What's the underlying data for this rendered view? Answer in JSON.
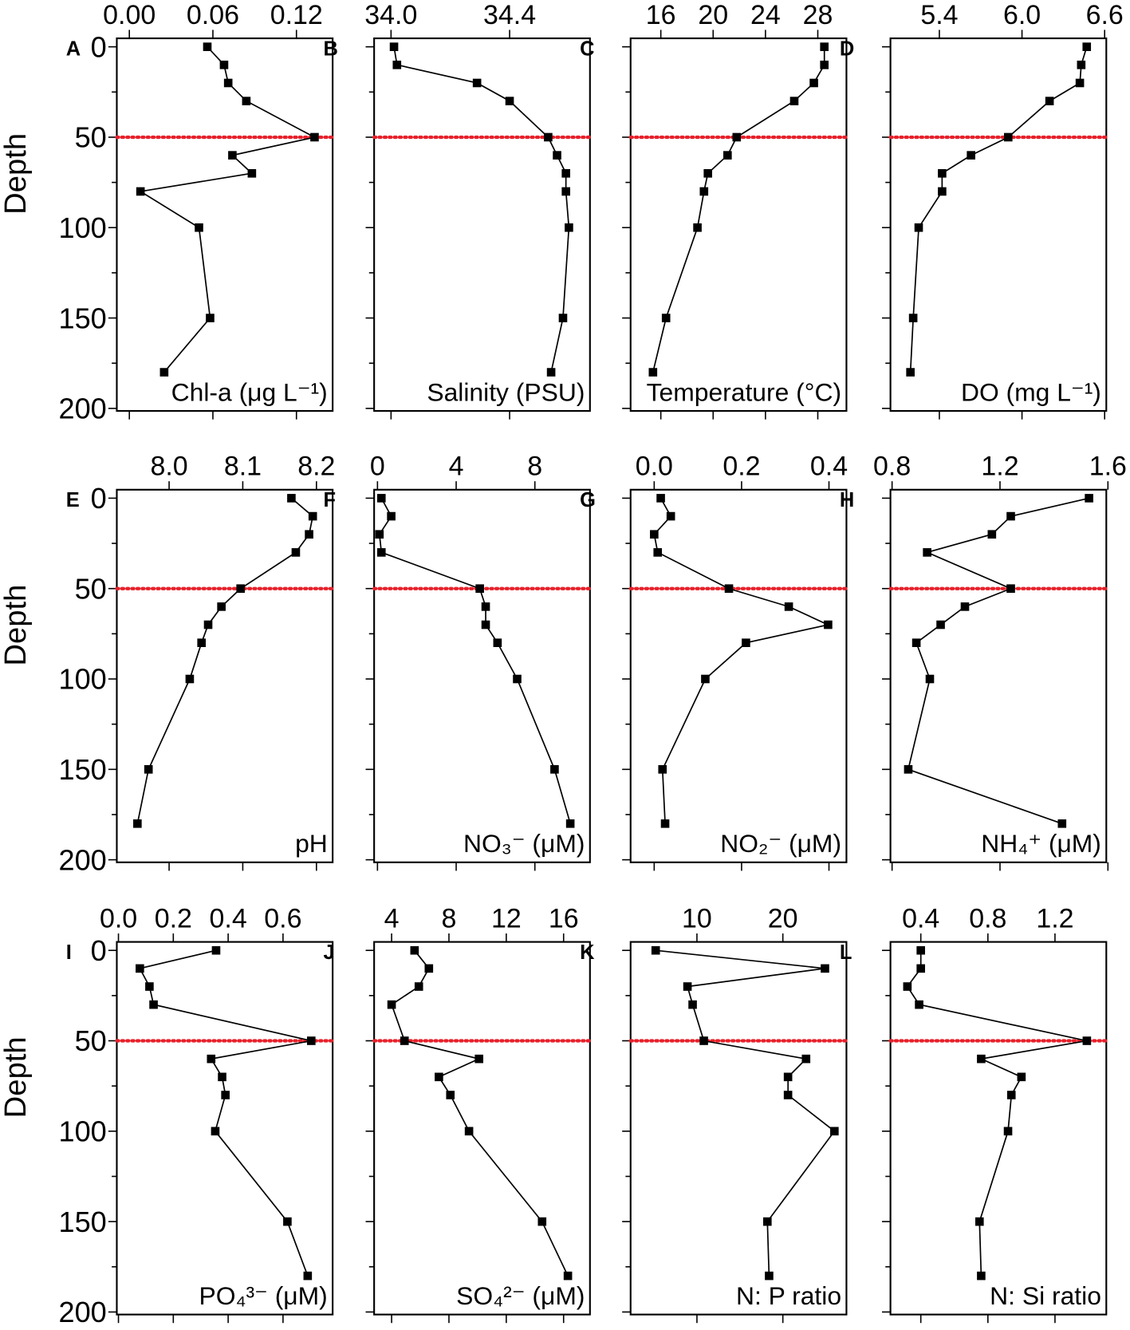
{
  "chart_data": {
    "type": "line",
    "layout": "3x4 grid of depth profiles",
    "ylabel": "Depth",
    "ylim": [
      0,
      200
    ],
    "yticks": [
      0,
      50,
      100,
      150,
      200
    ],
    "y_inverted": true,
    "reference_line": {
      "depth": 50,
      "style": "dotted",
      "color": "#e8202a"
    },
    "depths": [
      0,
      10,
      20,
      30,
      50,
      60,
      70,
      80,
      100,
      150,
      180
    ],
    "panels": [
      {
        "letter": "A",
        "xlabel": "Chl-a (μg L⁻¹)",
        "xlim": [
          -0.009,
          0.146
        ],
        "xticks": [
          0,
          0.06,
          0.12
        ],
        "xtick_labels": [
          "0.00",
          "0.06",
          "0.12"
        ],
        "values": [
          0.056,
          0.068,
          0.071,
          0.084,
          0.133,
          0.074,
          0.088,
          0.008,
          0.05,
          0.058,
          0.025
        ]
      },
      {
        "letter": "B",
        "xlabel": "Salinity (PSU)",
        "xlim": [
          33.943,
          34.671
        ],
        "xticks": [
          34.0,
          34.4
        ],
        "xtick_labels": [
          "34.0",
          "34.4"
        ],
        "values": [
          34.01,
          34.02,
          34.29,
          34.4,
          34.53,
          34.56,
          34.59,
          34.59,
          34.6,
          34.58,
          34.54
        ]
      },
      {
        "letter": "C",
        "xlabel": "Temperature (°C)",
        "xlim": [
          13.69,
          30.19
        ],
        "xticks": [
          16,
          20,
          24,
          28
        ],
        "xtick_labels": [
          "16",
          "20",
          "24",
          "28"
        ],
        "values": [
          28.5,
          28.5,
          27.7,
          26.2,
          21.8,
          21.1,
          19.6,
          19.3,
          18.8,
          16.4,
          15.4
        ]
      },
      {
        "letter": "D",
        "xlabel": "DO (mg L⁻¹)",
        "xlim": [
          5.045,
          6.612
        ],
        "xticks": [
          5.4,
          6.0,
          6.6
        ],
        "xtick_labels": [
          "5.4",
          "6.0",
          "6.6"
        ],
        "values": [
          6.47,
          6.43,
          6.42,
          6.2,
          5.9,
          5.63,
          5.42,
          5.42,
          5.25,
          5.21,
          5.19
        ]
      },
      {
        "letter": "E",
        "xlabel": "pH",
        "xlim": [
          7.929,
          8.222
        ],
        "xticks": [
          8.0,
          8.1,
          8.2
        ],
        "xtick_labels": [
          "8.0",
          "8.1",
          "8.2"
        ],
        "values": [
          8.166,
          8.195,
          8.19,
          8.172,
          8.097,
          8.071,
          8.053,
          8.044,
          8.028,
          7.972,
          7.957
        ]
      },
      {
        "letter": "F",
        "xlabel": "NO₃⁻ (μM)",
        "xlim": [
          -0.17,
          10.8
        ],
        "xticks": [
          0,
          4,
          8
        ],
        "xtick_labels": [
          "0",
          "4",
          "8"
        ],
        "values": [
          0.2,
          0.7,
          0.1,
          0.2,
          5.2,
          5.5,
          5.5,
          6.1,
          7.1,
          9.0,
          9.8
        ]
      },
      {
        "letter": "G",
        "xlabel": "NO₂⁻ (μM)",
        "xlim": [
          -0.054,
          0.44
        ],
        "xticks": [
          0,
          0.2,
          0.4
        ],
        "xtick_labels": [
          "0.0",
          "0.2",
          "0.4"
        ],
        "values": [
          0.015,
          0.038,
          0.0,
          0.008,
          0.171,
          0.308,
          0.398,
          0.21,
          0.117,
          0.019,
          0.025
        ]
      },
      {
        "letter": "H",
        "xlabel": "NH₄⁺ (μM)",
        "xlim": [
          0.794,
          1.594
        ],
        "xticks": [
          0.8,
          1.2,
          1.6
        ],
        "xtick_labels": [
          "0.8",
          "1.2",
          "1.6"
        ],
        "values": [
          1.53,
          1.24,
          1.17,
          0.93,
          1.24,
          1.07,
          0.98,
          0.89,
          0.94,
          0.86,
          1.43
        ]
      },
      {
        "letter": "I",
        "xlabel": "PO₄³⁻ (μM)",
        "xlim": [
          -0.006,
          0.781
        ],
        "xticks": [
          0,
          0.2,
          0.4,
          0.6
        ],
        "xtick_labels": [
          "0.0",
          "0.2",
          "0.4",
          "0.6"
        ],
        "values": [
          0.356,
          0.078,
          0.113,
          0.128,
          0.703,
          0.338,
          0.378,
          0.39,
          0.353,
          0.616,
          0.69
        ]
      },
      {
        "letter": "J",
        "xlabel": "SO₄²⁻ (μM)",
        "xlim": [
          2.78,
          17.84
        ],
        "xticks": [
          4,
          8,
          12,
          16
        ],
        "xtick_labels": [
          "4",
          "8",
          "12",
          "16"
        ],
        "values": [
          5.6,
          6.6,
          5.9,
          4.0,
          4.9,
          10.1,
          7.3,
          8.1,
          9.4,
          14.5,
          16.3
        ]
      },
      {
        "letter": "K",
        "xlabel": "N: P ratio",
        "xlim": [
          2.28,
          27.4
        ],
        "xticks": [
          10,
          20
        ],
        "xtick_labels": [
          "10",
          "20"
        ],
        "values": [
          5.2,
          24.9,
          8.9,
          9.5,
          10.8,
          22.7,
          20.6,
          20.6,
          26.0,
          18.2,
          18.4
        ]
      },
      {
        "letter": "L",
        "xlabel": "N: Si ratio",
        "xlim": [
          0.219,
          1.506
        ],
        "xticks": [
          0.4,
          0.8,
          1.2
        ],
        "xtick_labels": [
          "0.4",
          "0.8",
          "1.2"
        ],
        "values": [
          0.4,
          0.4,
          0.32,
          0.39,
          1.39,
          0.76,
          1.0,
          0.94,
          0.92,
          0.75,
          0.76
        ]
      }
    ]
  }
}
